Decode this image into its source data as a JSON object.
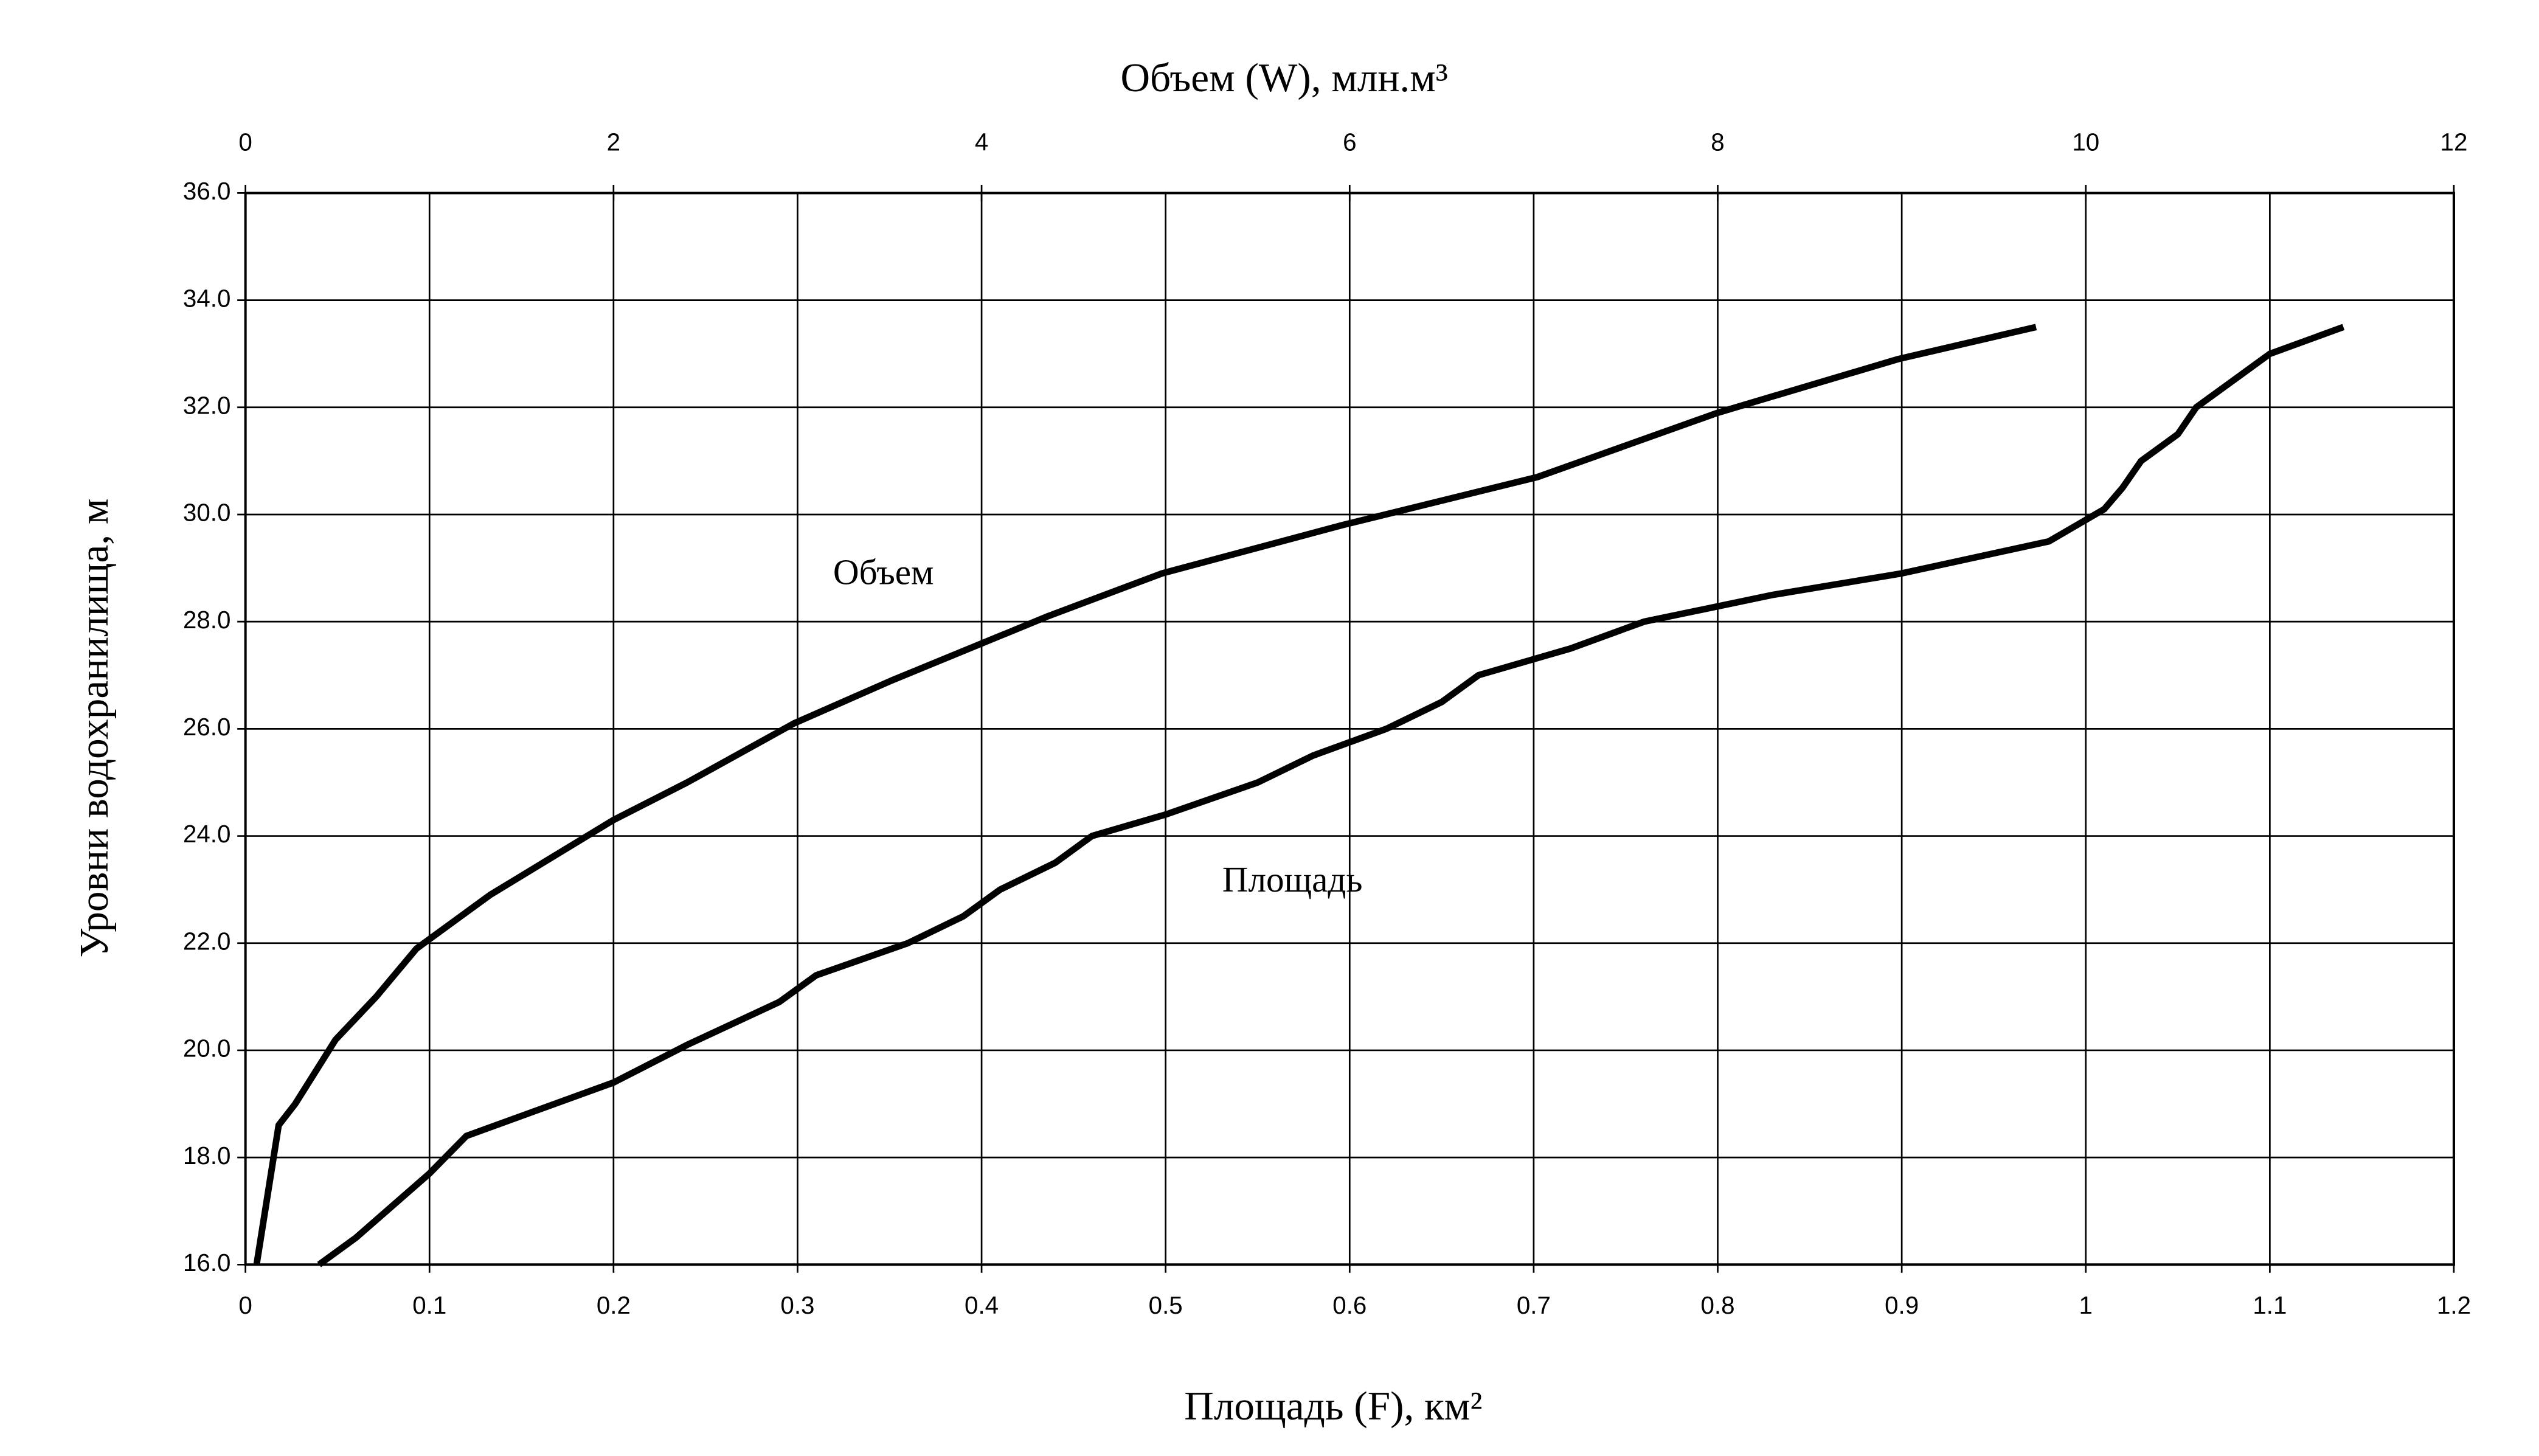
{
  "chart_data": {
    "type": "line",
    "x_label": "Площадь (F), км²",
    "x2_label": "Объем (W),  млн.м³",
    "y_label": "Уровни водохранилища,  м",
    "xlim": [
      0,
      1.2
    ],
    "xticks": [
      0,
      0.1,
      0.2,
      0.3,
      0.4,
      0.5,
      0.6,
      0.7,
      0.8,
      0.9,
      1,
      1.1,
      1.2
    ],
    "x2lim": [
      0,
      12
    ],
    "x2ticks": [
      0,
      2,
      4,
      6,
      8,
      10,
      12
    ],
    "ylim": [
      16,
      36
    ],
    "yticks": [
      {
        "value": 16,
        "label": "16.0"
      },
      {
        "value": 18,
        "label": "18.0"
      },
      {
        "value": 20,
        "label": "20.0"
      },
      {
        "value": 22,
        "label": "22.0"
      },
      {
        "value": 24,
        "label": "24.0"
      },
      {
        "value": 26,
        "label": "26.0"
      },
      {
        "value": 28,
        "label": "28.0"
      },
      {
        "value": 30,
        "label": "30.0"
      },
      {
        "value": 32,
        "label": "32.0"
      },
      {
        "value": 34,
        "label": "34.0"
      },
      {
        "value": 36,
        "label": "36.0"
      }
    ],
    "grid": true,
    "series": [
      {
        "name": "Объем",
        "color": "#000000",
        "axis": "x2",
        "x": [
          0.06,
          0.18,
          0.27,
          0.49,
          0.71,
          0.93,
          1.33,
          2.0,
          2.4,
          2.98,
          3.51,
          4.36,
          4.98,
          5.96,
          7.02,
          8.0,
          8.98,
          9.73
        ],
        "values": [
          16,
          18.6,
          19.0,
          20.2,
          21.0,
          21.9,
          22.9,
          24.3,
          25.0,
          26.1,
          26.9,
          28.1,
          28.9,
          29.8,
          30.7,
          31.9,
          32.9,
          33.5
        ]
      },
      {
        "name": "Площадь",
        "color": "#000000",
        "axis": "x",
        "x": [
          0.04,
          0.06,
          0.1,
          0.12,
          0.2,
          0.24,
          0.29,
          0.31,
          0.36,
          0.39,
          0.41,
          0.44,
          0.46,
          0.5,
          0.55,
          0.58,
          0.62,
          0.65,
          0.67,
          0.72,
          0.76,
          0.83,
          0.9,
          0.98,
          1.01,
          1.02,
          1.03,
          1.05,
          1.06,
          1.1,
          1.14
        ],
        "values": [
          16,
          16.5,
          17.7,
          18.4,
          19.4,
          20.1,
          20.9,
          21.4,
          22.0,
          22.5,
          23.0,
          23.5,
          24.0,
          24.4,
          25.0,
          25.5,
          26.0,
          26.5,
          27.0,
          27.5,
          28.0,
          28.5,
          28.9,
          29.5,
          30.1,
          30.5,
          31.0,
          31.5,
          32.0,
          33.0,
          33.5
        ]
      }
    ]
  }
}
